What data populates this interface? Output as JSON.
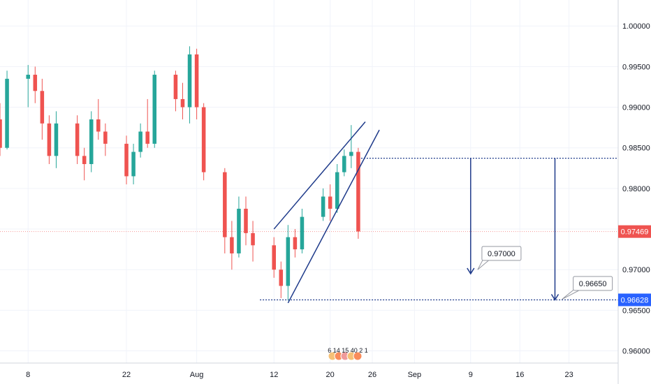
{
  "chart_data": {
    "type": "candlestick",
    "x_ticks": [
      {
        "label": "8",
        "date": "2019-07-08"
      },
      {
        "label": "22",
        "date": "2019-07-22"
      },
      {
        "label": "Aug",
        "date": "2019-08-01"
      },
      {
        "label": "12",
        "date": "2019-08-12"
      },
      {
        "label": "20",
        "date": "2019-08-20"
      },
      {
        "label": "26",
        "date": "2019-08-26"
      },
      {
        "label": "Sep",
        "date": "2019-09-01"
      },
      {
        "label": "9",
        "date": "2019-09-09"
      },
      {
        "label": "16",
        "date": "2019-09-16"
      },
      {
        "label": "23",
        "date": "2019-09-23"
      }
    ],
    "y_ticks": [
      "0.96000",
      "0.96500",
      "0.97000",
      "0.97500",
      "0.98000",
      "0.98500",
      "0.99000",
      "0.99500",
      "1.00000"
    ],
    "ylim": [
      0.9585,
      1.0032
    ],
    "xlim": [
      "2019-07-04",
      "2019-09-30"
    ],
    "grid": true,
    "colors": {
      "up": "#26a69a",
      "down": "#ef5350",
      "grid": "#f0f3fa",
      "drawing": "#1e3a8a",
      "level": "#2962ff"
    },
    "candles": [
      {
        "date": "2019-07-04",
        "open": 0.9885,
        "high": 0.9905,
        "low": 0.984,
        "close": 0.985
      },
      {
        "date": "2019-07-05",
        "open": 0.985,
        "high": 0.9945,
        "low": 0.9848,
        "close": 0.9935
      },
      {
        "date": "2019-07-08",
        "open": 0.9935,
        "high": 0.9952,
        "low": 0.99,
        "close": 0.994
      },
      {
        "date": "2019-07-09",
        "open": 0.994,
        "high": 0.995,
        "low": 0.9905,
        "close": 0.992
      },
      {
        "date": "2019-07-10",
        "open": 0.992,
        "high": 0.9935,
        "low": 0.986,
        "close": 0.988
      },
      {
        "date": "2019-07-11",
        "open": 0.988,
        "high": 0.989,
        "low": 0.983,
        "close": 0.984
      },
      {
        "date": "2019-07-12",
        "open": 0.984,
        "high": 0.9895,
        "low": 0.9825,
        "close": 0.988
      },
      {
        "date": "2019-07-15",
        "open": 0.988,
        "high": 0.989,
        "low": 0.983,
        "close": 0.984
      },
      {
        "date": "2019-07-16",
        "open": 0.984,
        "high": 0.985,
        "low": 0.981,
        "close": 0.983
      },
      {
        "date": "2019-07-17",
        "open": 0.983,
        "high": 0.9895,
        "low": 0.982,
        "close": 0.9885
      },
      {
        "date": "2019-07-18",
        "open": 0.9885,
        "high": 0.991,
        "low": 0.986,
        "close": 0.987
      },
      {
        "date": "2019-07-19",
        "open": 0.987,
        "high": 0.988,
        "low": 0.984,
        "close": 0.9855
      },
      {
        "date": "2019-07-22",
        "open": 0.9855,
        "high": 0.9865,
        "low": 0.9805,
        "close": 0.9815
      },
      {
        "date": "2019-07-23",
        "open": 0.9815,
        "high": 0.9855,
        "low": 0.9805,
        "close": 0.9845
      },
      {
        "date": "2019-07-24",
        "open": 0.9845,
        "high": 0.988,
        "low": 0.9838,
        "close": 0.987
      },
      {
        "date": "2019-07-25",
        "open": 0.987,
        "high": 0.991,
        "low": 0.985,
        "close": 0.9855
      },
      {
        "date": "2019-07-26",
        "open": 0.9855,
        "high": 0.9945,
        "low": 0.985,
        "close": 0.994
      },
      {
        "date": "2019-07-29",
        "open": 0.994,
        "high": 0.9945,
        "low": 0.9895,
        "close": 0.991
      },
      {
        "date": "2019-07-30",
        "open": 0.991,
        "high": 0.993,
        "low": 0.9885,
        "close": 0.99
      },
      {
        "date": "2019-07-31",
        "open": 0.99,
        "high": 0.9975,
        "low": 0.988,
        "close": 0.9965
      },
      {
        "date": "2019-08-01",
        "open": 0.9965,
        "high": 0.9972,
        "low": 0.9885,
        "close": 0.99
      },
      {
        "date": "2019-08-02",
        "open": 0.99,
        "high": 0.9905,
        "low": 0.981,
        "close": 0.982
      },
      {
        "date": "2019-08-05",
        "open": 0.982,
        "high": 0.9825,
        "low": 0.972,
        "close": 0.974
      },
      {
        "date": "2019-08-06",
        "open": 0.974,
        "high": 0.976,
        "low": 0.97,
        "close": 0.972
      },
      {
        "date": "2019-08-07",
        "open": 0.972,
        "high": 0.979,
        "low": 0.9715,
        "close": 0.9775
      },
      {
        "date": "2019-08-08",
        "open": 0.9775,
        "high": 0.979,
        "low": 0.973,
        "close": 0.9745
      },
      {
        "date": "2019-08-09",
        "open": 0.9745,
        "high": 0.976,
        "low": 0.971,
        "close": 0.973
      },
      {
        "date": "2019-08-12",
        "open": 0.973,
        "high": 0.974,
        "low": 0.969,
        "close": 0.97
      },
      {
        "date": "2019-08-13",
        "open": 0.97,
        "high": 0.971,
        "low": 0.9665,
        "close": 0.968
      },
      {
        "date": "2019-08-14",
        "open": 0.968,
        "high": 0.9755,
        "low": 0.9662,
        "close": 0.974
      },
      {
        "date": "2019-08-15",
        "open": 0.974,
        "high": 0.975,
        "low": 0.9715,
        "close": 0.9725
      },
      {
        "date": "2019-08-16",
        "open": 0.9725,
        "high": 0.9775,
        "low": 0.972,
        "close": 0.9765
      },
      {
        "date": "2019-08-19",
        "open": 0.9765,
        "high": 0.98,
        "low": 0.976,
        "close": 0.979
      },
      {
        "date": "2019-08-20",
        "open": 0.979,
        "high": 0.9805,
        "low": 0.976,
        "close": 0.9775
      },
      {
        "date": "2019-08-21",
        "open": 0.9775,
        "high": 0.983,
        "low": 0.977,
        "close": 0.982
      },
      {
        "date": "2019-08-22",
        "open": 0.982,
        "high": 0.9848,
        "low": 0.9815,
        "close": 0.984
      },
      {
        "date": "2019-08-23",
        "open": 0.984,
        "high": 0.9878,
        "low": 0.9825,
        "close": 0.9845
      },
      {
        "date": "2019-08-24",
        "open": 0.9845,
        "high": 0.985,
        "low": 0.9738,
        "close": 0.9747
      }
    ],
    "levels": [
      {
        "price": 0.98372,
        "style": "dotted",
        "from": "2019-08-24",
        "to": "2019-09-30"
      },
      {
        "price": 0.96628,
        "style": "dotted",
        "from": "2019-08-10",
        "to": "2019-09-30"
      },
      {
        "price": 0.97469,
        "style": "current-price",
        "from": "2019-07-04",
        "to": "2019-09-30"
      }
    ],
    "trendlines": [
      {
        "x1": "2019-08-12",
        "y1": 0.975,
        "x2": "2019-08-25",
        "y2": 0.9882
      },
      {
        "x1": "2019-08-14",
        "y1": 0.9659,
        "x2": "2019-08-27",
        "y2": 0.9872
      }
    ],
    "arrows": [
      {
        "date": "2019-09-09",
        "from": 0.98372,
        "to": 0.9695
      },
      {
        "date": "2019-09-21",
        "from": 0.98372,
        "to": 0.96628
      }
    ],
    "callouts": [
      {
        "text": "0.97000",
        "date": "2019-09-10",
        "price": 0.97,
        "box_date": "2019-09-11",
        "box_price": 0.972
      },
      {
        "text": "0.96650",
        "date": "2019-09-22",
        "price": 0.96635,
        "box_date": "2019-09-24",
        "box_price": 0.9683
      }
    ],
    "price_tags": [
      {
        "text": "0.97469",
        "price": 0.97469,
        "color": "#ef5350"
      },
      {
        "text": "0.96628",
        "price": 0.96628,
        "color": "#2962ff"
      }
    ],
    "events_label": "6  14 15   40 2 1"
  }
}
